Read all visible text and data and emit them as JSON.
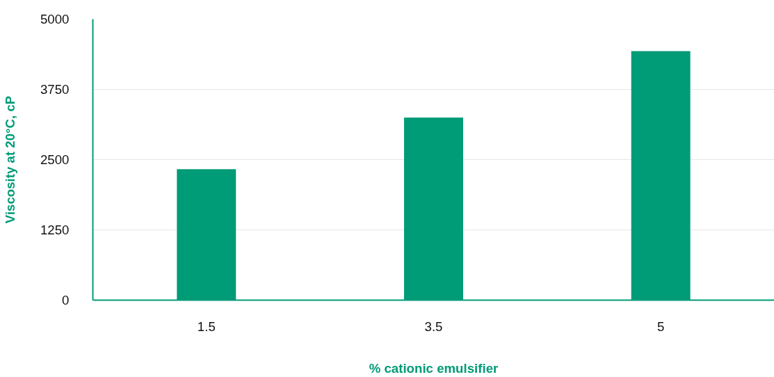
{
  "chart_data": {
    "type": "bar",
    "categories": [
      "1.5",
      "3.5",
      "5"
    ],
    "values": [
      2330,
      3250,
      4430
    ],
    "color": "#009b77",
    "xlabel": "% cationic emulsifier",
    "ylabel": "Viscosity at 20°C, cP",
    "ylim": [
      0,
      5000
    ],
    "yticks": [
      0,
      1250,
      2500,
      3750,
      5000
    ],
    "grid": "y"
  }
}
